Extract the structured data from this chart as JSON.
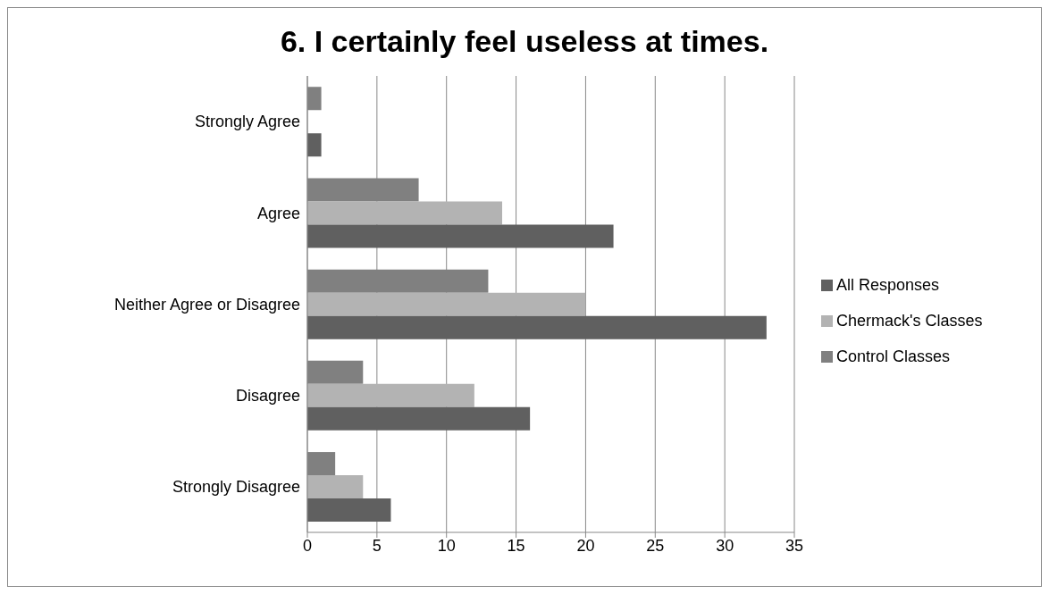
{
  "chart_data": {
    "type": "bar",
    "orientation": "horizontal",
    "title": "6. I certainly feel useless at times.",
    "categories": [
      "Strongly Agree",
      "Agree",
      "Neither Agree or Disagree",
      "Disagree",
      "Strongly Disagree"
    ],
    "series": [
      {
        "name": "Control Classes",
        "color": "#808080",
        "values": [
          1,
          8,
          13,
          4,
          2
        ]
      },
      {
        "name": "Chermack's Classes",
        "color": "#b3b3b3",
        "values": [
          0,
          14,
          20,
          12,
          4
        ]
      },
      {
        "name": "All Responses",
        "color": "#606060",
        "values": [
          1,
          22,
          33,
          16,
          6
        ]
      }
    ],
    "xlim": [
      0,
      35
    ],
    "xticks": [
      0,
      5,
      10,
      15,
      20,
      25,
      30,
      35
    ],
    "grid": "x",
    "legend": "right"
  }
}
